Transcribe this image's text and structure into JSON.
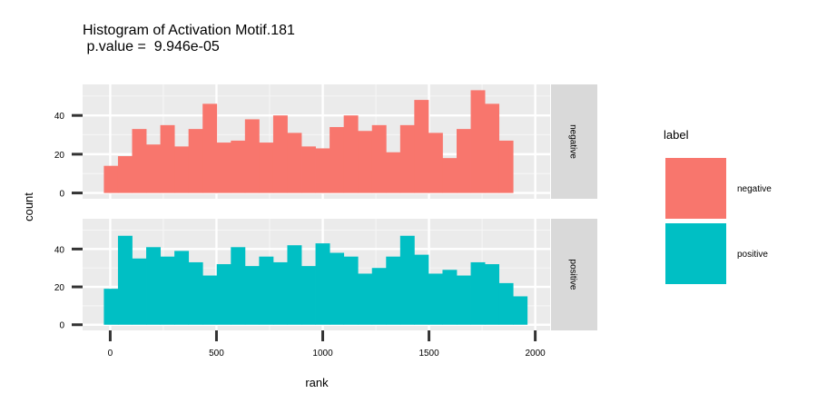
{
  "chart_data": {
    "type": "bar",
    "title": "Histogram of Activation Motif.181",
    "subtitle": " p.value =  9.946e-05",
    "xlabel": "rank",
    "ylabel": "count",
    "xlim": [
      -130,
      2070
    ],
    "ylim": [
      -3,
      56
    ],
    "x_ticks": [
      0,
      500,
      1000,
      1500,
      2000
    ],
    "x_tick_labels": [
      "0",
      "500",
      "1000",
      "1500",
      "2000"
    ],
    "y_ticks": [
      0,
      20,
      40
    ],
    "y_tick_labels": [
      "0",
      "20",
      "40"
    ],
    "bin_width": 66.4,
    "bin_edges_start": -30,
    "legend": {
      "title": "label",
      "position": "right",
      "entries": [
        "negative",
        "positive"
      ]
    },
    "grid": true,
    "series": [
      {
        "name": "negative",
        "color": "#F8766D",
        "values": [
          14,
          19,
          33,
          25,
          35,
          24,
          33,
          46,
          26,
          27,
          38,
          26,
          40,
          31,
          24,
          23,
          34,
          40,
          32,
          35,
          21,
          35,
          48,
          31,
          18,
          33,
          53,
          46,
          27
        ]
      },
      {
        "name": "positive",
        "color": "#00BFC4",
        "values": [
          19,
          47,
          35,
          41,
          36,
          39,
          33,
          26,
          32,
          41,
          31,
          36,
          33,
          42,
          31,
          43,
          38,
          36,
          27,
          30,
          36,
          47,
          37,
          27,
          29,
          26,
          33,
          32,
          22,
          15
        ]
      }
    ]
  },
  "panel_strips": [
    "negative",
    "positive"
  ]
}
